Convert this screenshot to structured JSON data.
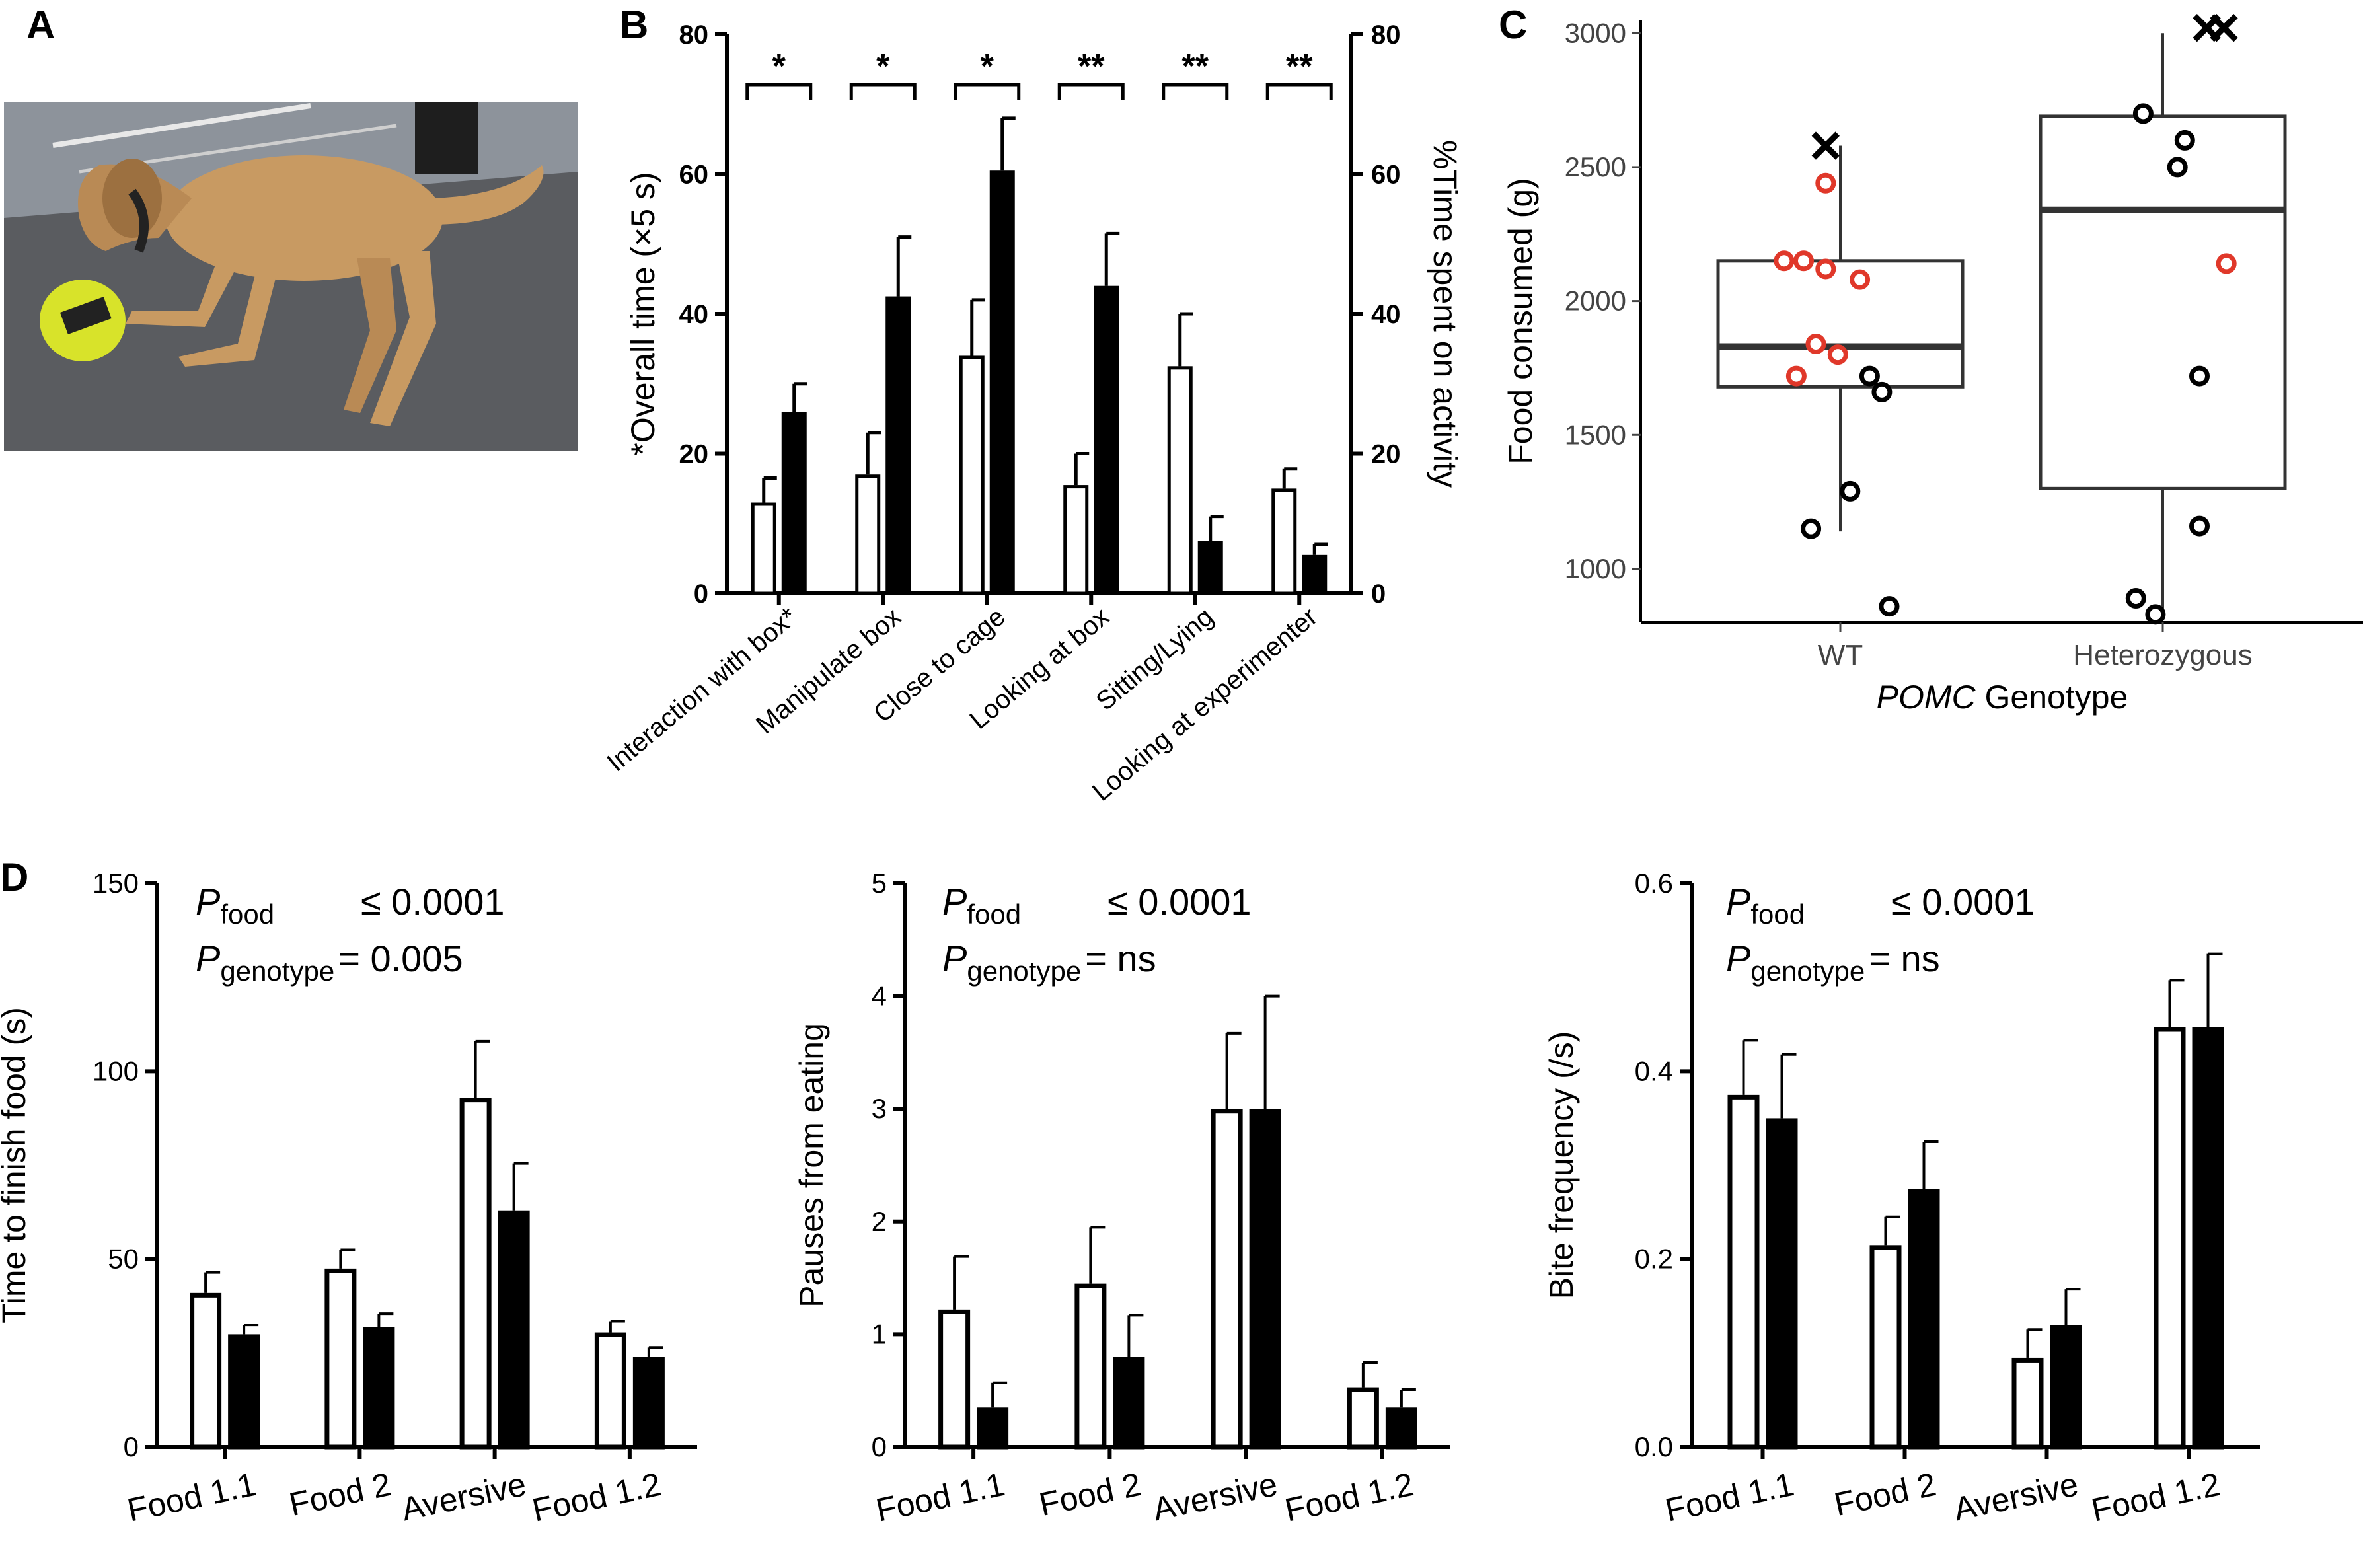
{
  "panels": {
    "a": {
      "letter": "A"
    },
    "b": {
      "letter": "B"
    },
    "c": {
      "letter": "C"
    },
    "d": {
      "letter": "D"
    }
  },
  "photo": {
    "description_name": "dog-with-ball-photo",
    "colors": {
      "floor": "#5a5c60",
      "dog": "#c79a62",
      "ball": "#d8e32a",
      "wall": "#9aa0a8"
    }
  },
  "colors": {
    "open_bar": "#ffffff",
    "filled_bar": "#000000",
    "red_point": "#e0382a",
    "black_point": "#000000",
    "box_stroke": "#333333"
  },
  "chart_data": [
    {
      "id": "B",
      "type": "bar",
      "title": "",
      "ylabel_left": "*Overall  time (×5 s)",
      "ylabel_right": "%Time spent on activity",
      "ylim": [
        0,
        80
      ],
      "yticks": [
        0,
        20,
        40,
        60,
        80
      ],
      "categories": [
        "Interaction with box*",
        "Manipulate box",
        "Close to cage",
        "Looking at box",
        "Sitting/Lying",
        "Looking at experimenter"
      ],
      "series": [
        {
          "fill": "open",
          "values": [
            13,
            17,
            34,
            15.5,
            32.5,
            15
          ],
          "errors": [
            3.5,
            6,
            8,
            4.5,
            7.5,
            2.8
          ]
        },
        {
          "fill": "filled",
          "values": [
            26,
            42.5,
            60.5,
            44,
            7.5,
            5.5
          ],
          "errors": [
            4,
            8.5,
            7.5,
            7.5,
            3.5,
            1.5
          ]
        }
      ],
      "significance": [
        "*",
        "*",
        "*",
        "**",
        "**",
        "**"
      ]
    },
    {
      "id": "C",
      "type": "box",
      "xlabel_italic": "POMC",
      "xlabel_rest": " Genotype",
      "ylabel": "Food consumed (g)",
      "ylim": [
        800,
        3050
      ],
      "yticks": [
        1000,
        1500,
        2000,
        2500,
        3000
      ],
      "categories": [
        "WT",
        "Heterozygous"
      ],
      "boxes": [
        {
          "q1": 1680,
          "median": 1830,
          "q3": 2150,
          "whisker_low": 1140,
          "whisker_high": 2580
        },
        {
          "q1": 1300,
          "median": 2340,
          "q3": 2690,
          "whisker_low": 820,
          "whisker_high": 3000
        }
      ],
      "points": [
        {
          "group": 0,
          "jitter": -0.12,
          "y": 2440,
          "color": "red"
        },
        {
          "group": 0,
          "jitter": -0.46,
          "y": 2150,
          "color": "red"
        },
        {
          "group": 0,
          "jitter": -0.3,
          "y": 2150,
          "color": "red"
        },
        {
          "group": 0,
          "jitter": -0.12,
          "y": 2120,
          "color": "red"
        },
        {
          "group": 0,
          "jitter": 0.16,
          "y": 2080,
          "color": "red"
        },
        {
          "group": 0,
          "jitter": -0.2,
          "y": 1840,
          "color": "red"
        },
        {
          "group": 0,
          "jitter": -0.02,
          "y": 1800,
          "color": "red"
        },
        {
          "group": 0,
          "jitter": -0.36,
          "y": 1720,
          "color": "red"
        },
        {
          "group": 0,
          "jitter": 0.24,
          "y": 1720,
          "color": "black"
        },
        {
          "group": 0,
          "jitter": 0.34,
          "y": 1660,
          "color": "black"
        },
        {
          "group": 0,
          "jitter": 0.08,
          "y": 1290,
          "color": "black"
        },
        {
          "group": 0,
          "jitter": -0.24,
          "y": 1150,
          "color": "black"
        },
        {
          "group": 0,
          "jitter": 0.4,
          "y": 860,
          "color": "black"
        },
        {
          "group": 1,
          "jitter": -0.16,
          "y": 2700,
          "color": "black"
        },
        {
          "group": 1,
          "jitter": 0.18,
          "y": 2600,
          "color": "black"
        },
        {
          "group": 1,
          "jitter": 0.12,
          "y": 2500,
          "color": "black"
        },
        {
          "group": 1,
          "jitter": 0.52,
          "y": 2140,
          "color": "red"
        },
        {
          "group": 1,
          "jitter": 0.3,
          "y": 1720,
          "color": "black"
        },
        {
          "group": 1,
          "jitter": 0.3,
          "y": 1160,
          "color": "black"
        },
        {
          "group": 1,
          "jitter": -0.22,
          "y": 890,
          "color": "black"
        },
        {
          "group": 1,
          "jitter": -0.06,
          "y": 830,
          "color": "black"
        }
      ],
      "outliers": [
        {
          "group": 0,
          "jitter": -0.12,
          "y": 2580
        },
        {
          "group": 1,
          "jitter": 0.36,
          "y": 3020
        },
        {
          "group": 1,
          "jitter": 0.5,
          "y": 3020
        }
      ]
    },
    {
      "id": "D1",
      "type": "bar",
      "ylabel": "Time to finish food (s)",
      "ylim": [
        0,
        150
      ],
      "yticks": [
        0,
        50,
        100,
        150
      ],
      "categories": [
        "Food 1.1",
        "Food 2",
        "Aversive",
        "Food 1.2"
      ],
      "series": [
        {
          "fill": "open",
          "values": [
            41,
            47.5,
            93,
            30.5
          ],
          "errors": [
            5.5,
            5,
            15,
            3
          ]
        },
        {
          "fill": "filled",
          "values": [
            30,
            32,
            63,
            24
          ],
          "errors": [
            2.5,
            3.5,
            12.5,
            2.5
          ]
        }
      ],
      "stats": {
        "p_food_label": "food",
        "p_food_value": "≤ 0.0001",
        "p_genotype_label": "genotype",
        "p_genotype_value": "= 0.005"
      }
    },
    {
      "id": "D2",
      "type": "bar",
      "ylabel": "Pauses from eating",
      "ylim": [
        0,
        5
      ],
      "yticks": [
        0,
        1,
        2,
        3,
        4,
        5
      ],
      "categories": [
        "Food 1.1",
        "Food 2",
        "Aversive",
        "Food 1.2"
      ],
      "series": [
        {
          "fill": "open",
          "values": [
            1.22,
            1.45,
            3,
            0.53
          ],
          "errors": [
            0.47,
            0.5,
            0.67,
            0.22
          ]
        },
        {
          "fill": "filled",
          "values": [
            0.35,
            0.8,
            3,
            0.35
          ],
          "errors": [
            0.22,
            0.37,
            1.0,
            0.16
          ]
        }
      ],
      "stats": {
        "p_food_label": "food",
        "p_food_value": "≤ 0.0001",
        "p_genotype_label": "genotype",
        "p_genotype_value": "= ns"
      }
    },
    {
      "id": "D3",
      "type": "bar",
      "ylabel": "Bite frequency (/s)",
      "ylim": [
        0,
        0.6
      ],
      "yticks": [
        "0.0",
        "0.2",
        "0.4",
        "0.6"
      ],
      "categories": [
        "Food 1.1",
        "Food 2",
        "Aversive",
        "Food 1.2"
      ],
      "series": [
        {
          "fill": "open",
          "values": [
            0.375,
            0.215,
            0.095,
            0.447
          ],
          "errors": [
            0.058,
            0.03,
            0.03,
            0.05
          ]
        },
        {
          "fill": "filled",
          "values": [
            0.35,
            0.275,
            0.13,
            0.447
          ],
          "errors": [
            0.068,
            0.05,
            0.038,
            0.078
          ]
        }
      ],
      "stats": {
        "p_food_label": "food",
        "p_food_value": "≤ 0.0001",
        "p_genotype_label": "genotype",
        "p_genotype_value": "= ns"
      }
    }
  ]
}
